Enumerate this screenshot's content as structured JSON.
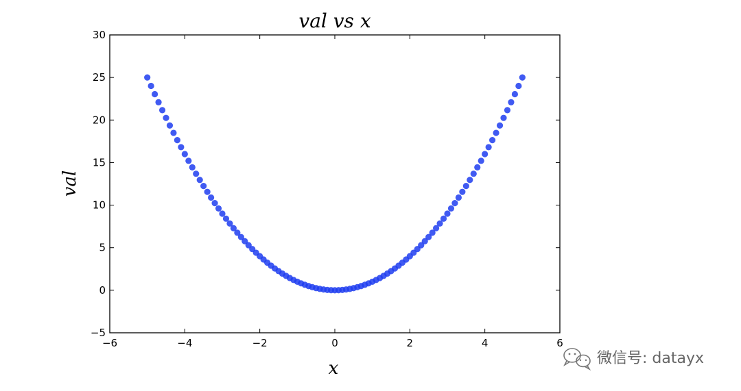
{
  "chart_data": {
    "type": "scatter",
    "title": "val vs x",
    "xlabel": "x",
    "ylabel": "val",
    "xlim": [
      -6,
      6
    ],
    "ylim": [
      -5,
      30
    ],
    "x_ticks": [
      -6,
      -4,
      -2,
      0,
      2,
      4,
      6
    ],
    "y_ticks": [
      -5,
      0,
      5,
      10,
      15,
      20,
      25,
      30
    ],
    "x_tick_labels": [
      "−6",
      "−4",
      "−2",
      "0",
      "2",
      "4",
      "6"
    ],
    "y_tick_labels": [
      "−5",
      "0",
      "5",
      "10",
      "15",
      "20",
      "25",
      "30"
    ],
    "grid": false,
    "marker_color": "#1f3df0",
    "relation": "val = x^2",
    "series": [
      {
        "x": [
          -5.0,
          -4.9,
          -4.8,
          -4.7,
          -4.6,
          -4.5,
          -4.4,
          -4.3,
          -4.2,
          -4.1,
          -4.0,
          -3.9,
          -3.8,
          -3.7,
          -3.6,
          -3.5,
          -3.4,
          -3.3,
          -3.2,
          -3.1,
          -3.0,
          -2.9,
          -2.8,
          -2.7,
          -2.6,
          -2.5,
          -2.4,
          -2.3,
          -2.2,
          -2.1,
          -2.0,
          -1.9,
          -1.8,
          -1.7,
          -1.6,
          -1.5,
          -1.4,
          -1.3,
          -1.2,
          -1.1,
          -1.0,
          -0.9,
          -0.8,
          -0.7,
          -0.6,
          -0.5,
          -0.4,
          -0.3,
          -0.2,
          -0.1,
          0.0,
          0.1,
          0.2,
          0.3,
          0.4,
          0.5,
          0.6,
          0.7,
          0.8,
          0.9,
          1.0,
          1.1,
          1.2,
          1.3,
          1.4,
          1.5,
          1.6,
          1.7,
          1.8,
          1.9,
          2.0,
          2.1,
          2.2,
          2.3,
          2.4,
          2.5,
          2.6,
          2.7,
          2.8,
          2.9,
          3.0,
          3.1,
          3.2,
          3.3,
          3.4,
          3.5,
          3.6,
          3.7,
          3.8,
          3.9,
          4.0,
          4.1,
          4.2,
          4.3,
          4.4,
          4.5,
          4.6,
          4.7,
          4.8,
          4.9,
          5.0
        ],
        "y": [
          25.0,
          24.01,
          23.04,
          22.09,
          21.16,
          20.25,
          19.36,
          18.49,
          17.64,
          16.81,
          16.0,
          15.21,
          14.44,
          13.69,
          12.96,
          12.25,
          11.56,
          10.89,
          10.24,
          9.61,
          9.0,
          8.41,
          7.84,
          7.29,
          6.76,
          6.25,
          5.76,
          5.29,
          4.84,
          4.41,
          4.0,
          3.61,
          3.24,
          2.89,
          2.56,
          2.25,
          1.96,
          1.69,
          1.44,
          1.21,
          1.0,
          0.81,
          0.64,
          0.49,
          0.36,
          0.25,
          0.16,
          0.09,
          0.04,
          0.01,
          0.0,
          0.01,
          0.04,
          0.09,
          0.16,
          0.25,
          0.36,
          0.49,
          0.64,
          0.81,
          1.0,
          1.21,
          1.44,
          1.69,
          1.96,
          2.25,
          2.56,
          2.89,
          3.24,
          3.61,
          4.0,
          4.41,
          4.84,
          5.29,
          5.76,
          6.25,
          6.76,
          7.29,
          7.84,
          8.41,
          9.0,
          9.61,
          10.24,
          10.89,
          11.56,
          12.25,
          12.96,
          13.69,
          14.44,
          15.21,
          16.0,
          16.81,
          17.64,
          18.49,
          19.36,
          20.25,
          21.16,
          22.09,
          23.04,
          24.01,
          25.0
        ]
      }
    ]
  },
  "watermark": {
    "text": "微信号: datayx",
    "icon": "wechat-icon"
  }
}
